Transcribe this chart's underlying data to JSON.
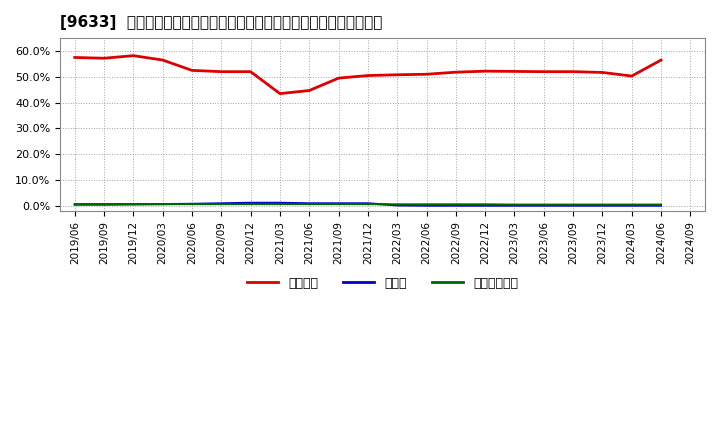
{
  "title": "[9633]  自己資本、のれん、繰延税金資産の総資産に対する比率の推移",
  "background_color": "#ffffff",
  "plot_bg_color": "#ffffff",
  "grid_color": "#999999",
  "series": {
    "equity": {
      "label": "自己資本",
      "color": "#dd0000",
      "linewidth": 2.0,
      "dates": [
        "2019/06",
        "2019/09",
        "2019/12",
        "2020/03",
        "2020/06",
        "2020/09",
        "2020/12",
        "2021/03",
        "2021/06",
        "2021/09",
        "2021/12",
        "2022/03",
        "2022/06",
        "2022/09",
        "2022/12",
        "2023/03",
        "2023/06",
        "2023/09",
        "2023/12",
        "2024/03",
        "2024/06"
      ],
      "values": [
        0.575,
        0.572,
        0.582,
        0.565,
        0.525,
        0.52,
        0.52,
        0.435,
        0.447,
        0.495,
        0.505,
        0.508,
        0.51,
        0.518,
        0.522,
        0.521,
        0.52,
        0.52,
        0.517,
        0.503,
        0.565
      ]
    },
    "goodwill": {
      "label": "のれん",
      "color": "#0000cc",
      "linewidth": 1.5,
      "dates": [
        "2019/06",
        "2019/09",
        "2019/12",
        "2020/03",
        "2020/06",
        "2020/09",
        "2020/12",
        "2021/03",
        "2021/06",
        "2021/09",
        "2021/12",
        "2022/03",
        "2022/06",
        "2022/09",
        "2022/12",
        "2023/03",
        "2023/06",
        "2023/09",
        "2023/12",
        "2024/03",
        "2024/06"
      ],
      "values": [
        0.005,
        0.005,
        0.006,
        0.007,
        0.008,
        0.01,
        0.012,
        0.012,
        0.01,
        0.01,
        0.01,
        0.002,
        0.001,
        0.001,
        0.001,
        0.001,
        0.001,
        0.001,
        0.001,
        0.001,
        0.001
      ]
    },
    "deferred_tax": {
      "label": "繰延税金資産",
      "color": "#006600",
      "linewidth": 1.5,
      "dates": [
        "2019/06",
        "2019/09",
        "2019/12",
        "2020/03",
        "2020/06",
        "2020/09",
        "2020/12",
        "2021/03",
        "2021/06",
        "2021/09",
        "2021/12",
        "2022/03",
        "2022/06",
        "2022/09",
        "2022/12",
        "2023/03",
        "2023/06",
        "2023/09",
        "2023/12",
        "2024/03",
        "2024/06"
      ],
      "values": [
        0.007,
        0.007,
        0.007,
        0.007,
        0.007,
        0.007,
        0.007,
        0.007,
        0.007,
        0.007,
        0.007,
        0.006,
        0.006,
        0.006,
        0.006,
        0.005,
        0.005,
        0.005,
        0.005,
        0.005,
        0.005
      ]
    }
  },
  "xtick_labels": [
    "2019/06",
    "2019/09",
    "2019/12",
    "2020/03",
    "2020/06",
    "2020/09",
    "2020/12",
    "2021/03",
    "2021/06",
    "2021/09",
    "2021/12",
    "2022/03",
    "2022/06",
    "2022/09",
    "2022/12",
    "2023/03",
    "2023/06",
    "2023/09",
    "2023/12",
    "2024/03",
    "2024/06",
    "2024/09"
  ],
  "ytick_values": [
    0.0,
    0.1,
    0.2,
    0.3,
    0.4,
    0.5,
    0.6
  ],
  "ytick_labels": [
    "0.0%",
    "10.0%",
    "20.0%",
    "30.0%",
    "40.0%",
    "50.0%",
    "60.0%"
  ],
  "ylim": [
    -0.02,
    0.65
  ],
  "title_fontsize": 11,
  "tick_fontsize": 7.5,
  "ytick_fontsize": 8,
  "legend_fontsize": 9
}
